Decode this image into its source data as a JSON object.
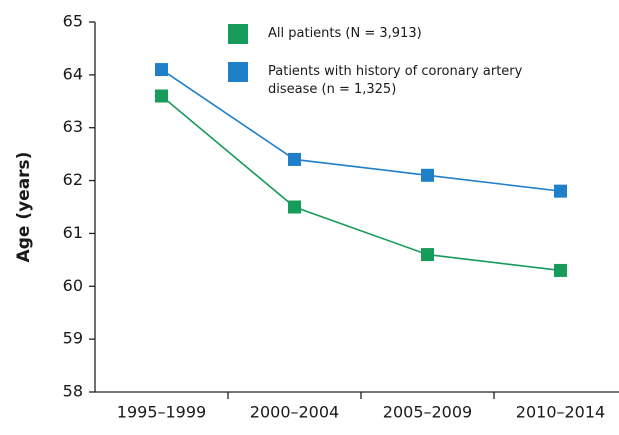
{
  "chart_data": {
    "type": "line",
    "y_label": "Age (years)",
    "categories": [
      "1995–1999",
      "2000–2004",
      "2005–2009",
      "2010–2014"
    ],
    "series": [
      {
        "name": "All patients (N = 3,913)",
        "color": "#169b5a",
        "values": [
          63.6,
          61.5,
          60.6,
          60.3
        ]
      },
      {
        "name": "Patients with history of coronary artery disease (n = 1,325)",
        "color": "#1f7fc8",
        "values": [
          64.1,
          62.4,
          62.1,
          61.8
        ]
      }
    ],
    "ylim": [
      58,
      65
    ],
    "yticks": [
      58,
      59,
      60,
      61,
      62,
      63,
      64,
      65
    ],
    "grid": false
  }
}
